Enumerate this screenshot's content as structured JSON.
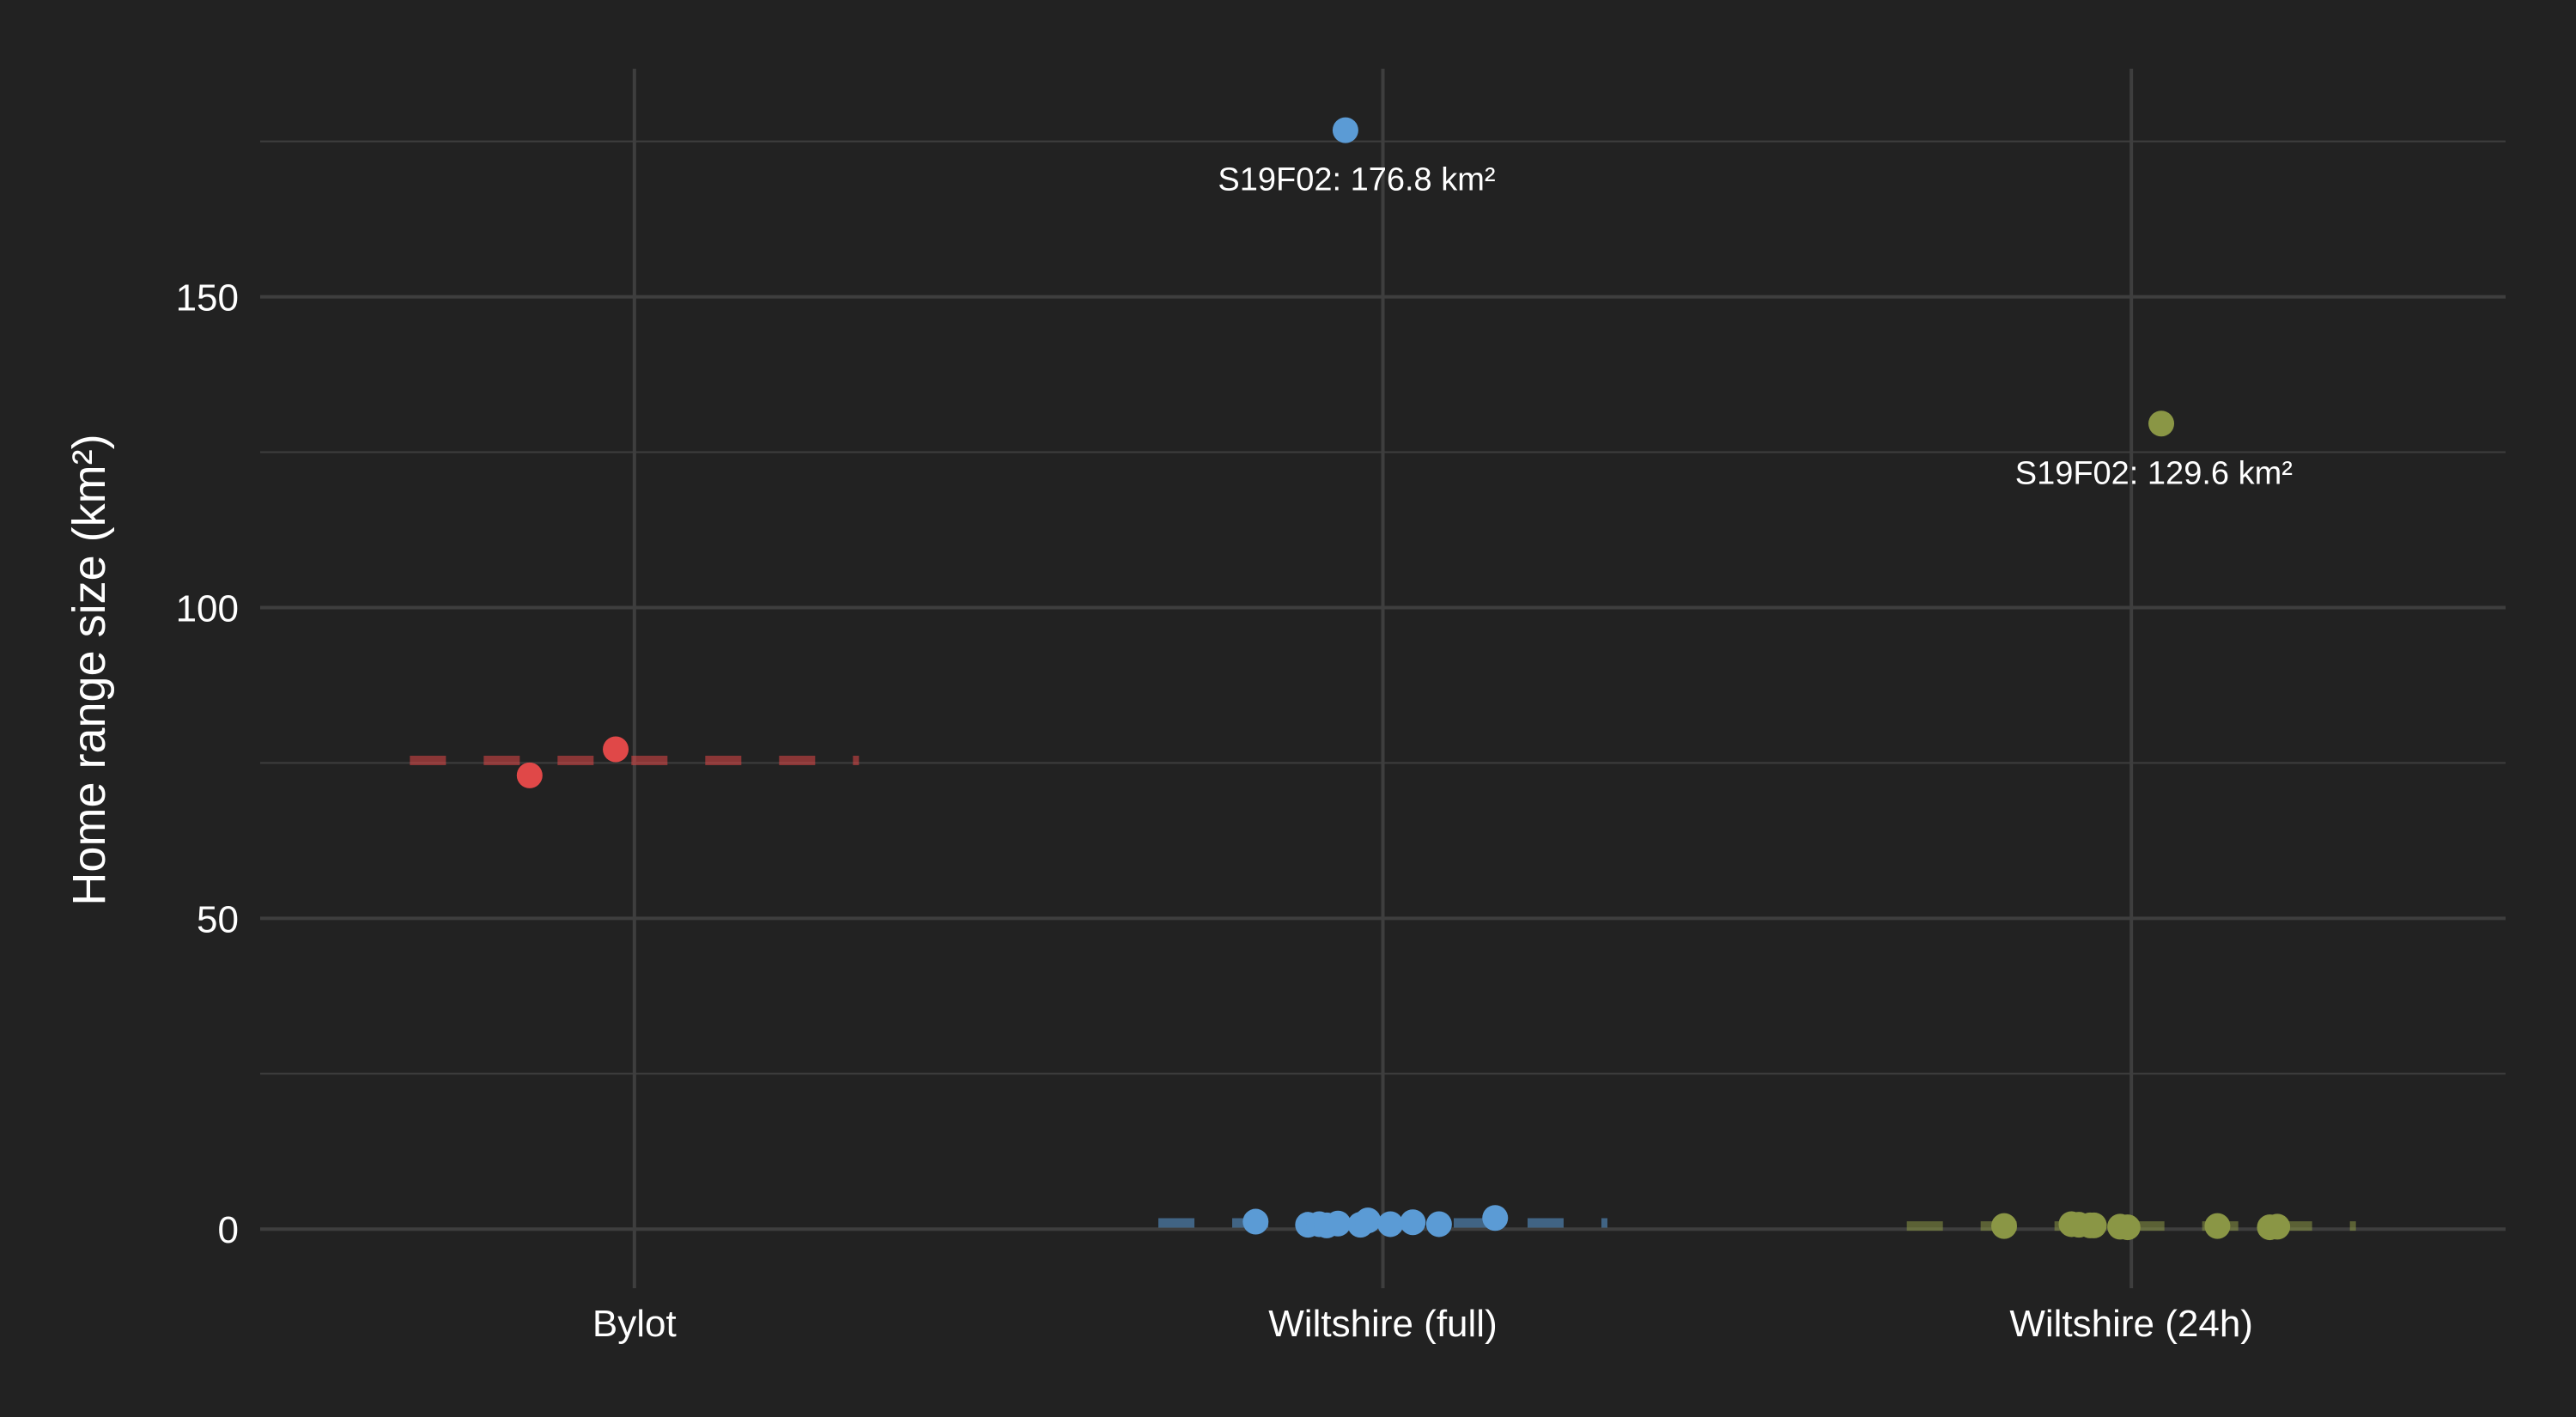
{
  "chart_data": {
    "type": "scatter",
    "title": "",
    "xlabel": "",
    "ylabel": "Home range size (km²)",
    "ylim": [
      -9.5,
      186.7
    ],
    "y_ticks": [
      0,
      50,
      100,
      150
    ],
    "y_tick_labels": [
      "0",
      "50",
      "100",
      "150"
    ],
    "categories": [
      "Bylot",
      "Wiltshire (full)",
      "Wiltshire (24h)"
    ],
    "grid": true,
    "legend": "none",
    "background_color": "#222222",
    "grid_color": "#3e3e3e",
    "text_color": "#ffffff",
    "series": [
      {
        "category": "Bylot",
        "color": "#e04848",
        "mean_line": 75.4,
        "points": [
          {
            "x_offset": -0.14,
            "y": 73.0
          },
          {
            "x_offset": -0.025,
            "y": 77.2
          }
        ]
      },
      {
        "category": "Wiltshire (full)",
        "color": "#5b9bd5",
        "mean_line": 1.0,
        "points": [
          {
            "x_offset": -0.05,
            "y": 176.8
          },
          {
            "x_offset": -0.17,
            "y": 1.2
          },
          {
            "x_offset": -0.1,
            "y": 0.7
          },
          {
            "x_offset": -0.085,
            "y": 0.8
          },
          {
            "x_offset": -0.075,
            "y": 0.6
          },
          {
            "x_offset": -0.06,
            "y": 0.9
          },
          {
            "x_offset": -0.03,
            "y": 0.7
          },
          {
            "x_offset": -0.02,
            "y": 1.4
          },
          {
            "x_offset": 0.01,
            "y": 0.8
          },
          {
            "x_offset": 0.04,
            "y": 1.1
          },
          {
            "x_offset": 0.075,
            "y": 0.8
          },
          {
            "x_offset": 0.15,
            "y": 1.8
          }
        ]
      },
      {
        "category": "Wiltshire (24h)",
        "color": "#8a9645",
        "mean_line": 0.5,
        "points": [
          {
            "x_offset": 0.04,
            "y": 129.6
          },
          {
            "x_offset": -0.17,
            "y": 0.5
          },
          {
            "x_offset": -0.08,
            "y": 0.8
          },
          {
            "x_offset": -0.07,
            "y": 0.7
          },
          {
            "x_offset": -0.055,
            "y": 0.6
          },
          {
            "x_offset": -0.05,
            "y": 0.6
          },
          {
            "x_offset": -0.015,
            "y": 0.4
          },
          {
            "x_offset": -0.005,
            "y": 0.3
          },
          {
            "x_offset": 0.115,
            "y": 0.5
          },
          {
            "x_offset": 0.185,
            "y": 0.3
          },
          {
            "x_offset": 0.195,
            "y": 0.4
          }
        ]
      }
    ],
    "annotations": [
      {
        "category": "Wiltshire (full)",
        "x_offset": -0.035,
        "y": 176.8,
        "text": "S19F02: 176.8 km²"
      },
      {
        "category": "Wiltshire (24h)",
        "x_offset": 0.03,
        "y": 129.6,
        "text": "S19F02: 129.6 km²"
      }
    ]
  }
}
